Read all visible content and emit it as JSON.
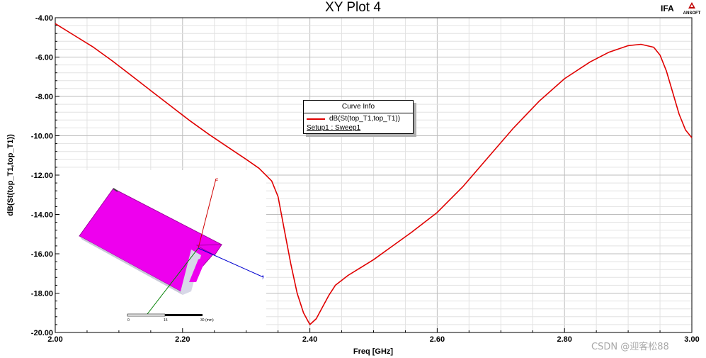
{
  "brand": "IFA",
  "logo_text": "ANSOFT",
  "watermark": "CSDN @迎客松88",
  "chart_data": {
    "type": "line",
    "title": "XY Plot 4",
    "xlabel": "Freq [GHz]",
    "ylabel": "dB(St(top_T1,top_T1))",
    "xlim": [
      2.0,
      3.0
    ],
    "ylim": [
      -20.0,
      -4.0
    ],
    "xticks": [
      2.0,
      2.2,
      2.4,
      2.6,
      2.8,
      3.0
    ],
    "xtick_labels": [
      "2.00",
      "2.20",
      "2.40",
      "2.60",
      "2.80",
      "3.00"
    ],
    "yticks": [
      -4,
      -6,
      -8,
      -10,
      -12,
      -14,
      -16,
      -18,
      -20
    ],
    "ytick_labels": [
      "-4.00",
      "-6.00",
      "-8.00",
      "-10.00",
      "-12.00",
      "-14.00",
      "-16.00",
      "-18.00",
      "-20.00"
    ],
    "grid": true,
    "legend": {
      "title": "Curve Info",
      "position": "center",
      "entries": [
        "dB(St(top_T1,top_T1))"
      ],
      "subtitle": "Setup1 : Sweep1"
    },
    "series": [
      {
        "name": "dB(St(top_T1,top_T1))",
        "color": "#e00000",
        "x": [
          2.0,
          2.03,
          2.06,
          2.09,
          2.12,
          2.15,
          2.18,
          2.21,
          2.24,
          2.27,
          2.3,
          2.32,
          2.34,
          2.35,
          2.36,
          2.37,
          2.38,
          2.39,
          2.4,
          2.41,
          2.42,
          2.43,
          2.44,
          2.46,
          2.48,
          2.5,
          2.53,
          2.56,
          2.6,
          2.64,
          2.68,
          2.72,
          2.76,
          2.8,
          2.84,
          2.87,
          2.9,
          2.92,
          2.94,
          2.95,
          2.96,
          2.97,
          2.98,
          2.99,
          3.0
        ],
        "y": [
          -4.3,
          -4.9,
          -5.5,
          -6.2,
          -6.95,
          -7.7,
          -8.45,
          -9.2,
          -9.9,
          -10.55,
          -11.2,
          -11.65,
          -12.3,
          -13.1,
          -14.8,
          -16.5,
          -18.0,
          -19.0,
          -19.6,
          -19.3,
          -18.7,
          -18.1,
          -17.6,
          -17.1,
          -16.7,
          -16.3,
          -15.6,
          -14.9,
          -13.9,
          -12.6,
          -11.1,
          -9.6,
          -8.25,
          -7.1,
          -6.25,
          -5.75,
          -5.42,
          -5.35,
          -5.5,
          -5.9,
          -6.7,
          -7.8,
          -8.9,
          -9.7,
          -10.1
        ]
      }
    ]
  },
  "inset": {
    "scale_labels": [
      "0",
      "15",
      "30 (mm)"
    ],
    "axis_labels": [
      "z",
      "y"
    ]
  }
}
